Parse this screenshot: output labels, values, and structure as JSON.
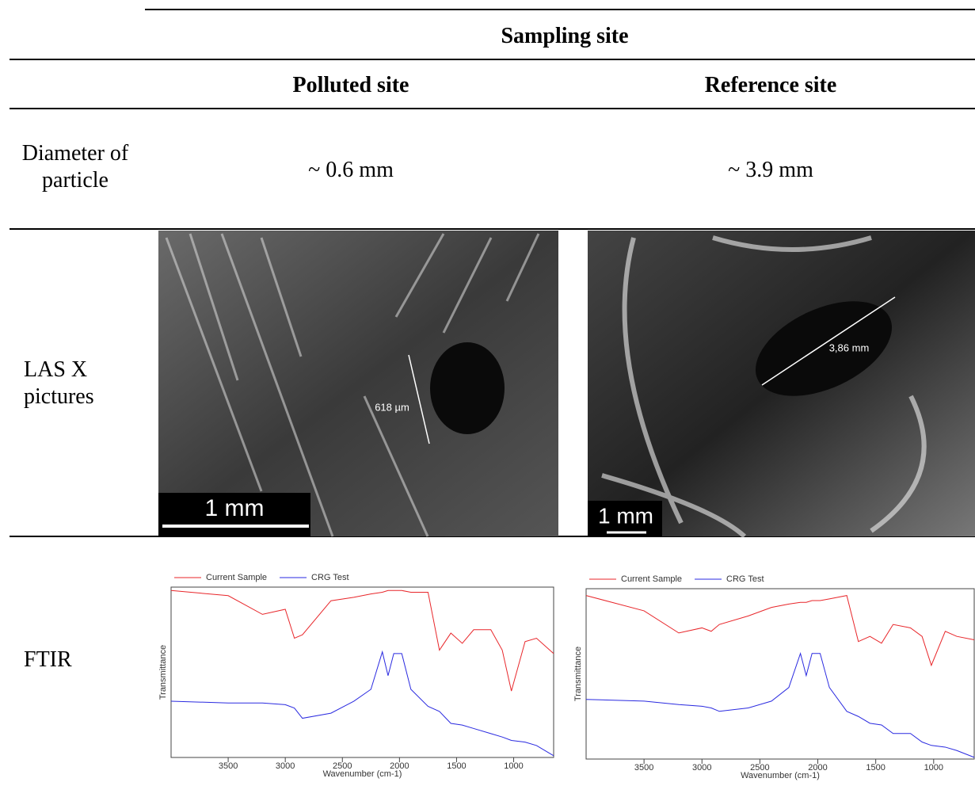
{
  "table": {
    "header": {
      "group": "Sampling site",
      "columns": [
        "Polluted site",
        "Reference site"
      ]
    },
    "rows": [
      {
        "label": "Diameter of particle",
        "cells": [
          "~ 0.6 mm",
          "~ 3.9 mm"
        ]
      },
      {
        "label": "LAS X pictures",
        "images": [
          {
            "measurement": "618 µm",
            "scale_bar": "1 mm"
          },
          {
            "measurement": "3,86 mm",
            "scale_bar": "1 mm"
          }
        ]
      },
      {
        "label": "FTIR"
      }
    ]
  },
  "chart_data": [
    {
      "type": "line",
      "x_label": "Wavenumber (cm-1)",
      "y_label": "Transmittance",
      "xlim": [
        4000,
        650
      ],
      "xticks": [
        3500,
        3000,
        2500,
        2000,
        1500,
        1000
      ],
      "ylim": [
        0,
        100
      ],
      "x": [
        4000,
        3500,
        3200,
        3000,
        2920,
        2850,
        2600,
        2400,
        2250,
        2150,
        2100,
        2050,
        1980,
        1900,
        1750,
        1650,
        1550,
        1450,
        1350,
        1200,
        1100,
        1020,
        900,
        800,
        650
      ],
      "series": [
        {
          "name": "Current Sample",
          "color": "#e8262a",
          "values": [
            98,
            95,
            84,
            87,
            70,
            72,
            92,
            94,
            96,
            97,
            98,
            98,
            98,
            97,
            97,
            63,
            73,
            67,
            75,
            75,
            63,
            39,
            68,
            70,
            61
          ]
        },
        {
          "name": "CRG Test",
          "color": "#2a2ae0",
          "values": [
            33,
            32,
            32,
            31,
            29,
            23,
            26,
            33,
            40,
            62,
            48,
            61,
            61,
            40,
            30,
            27,
            20,
            19,
            17,
            14,
            12,
            10,
            9,
            7,
            1
          ]
        }
      ]
    },
    {
      "type": "line",
      "x_label": "Wavenumber (cm-1)",
      "y_label": "Transmittance",
      "xlim": [
        4000,
        650
      ],
      "xticks": [
        3500,
        3000,
        2500,
        2000,
        1500,
        1000
      ],
      "ylim": [
        0,
        100
      ],
      "x": [
        4000,
        3500,
        3200,
        3000,
        2920,
        2850,
        2600,
        2400,
        2250,
        2150,
        2100,
        2050,
        1980,
        1900,
        1750,
        1650,
        1550,
        1450,
        1350,
        1200,
        1100,
        1020,
        900,
        800,
        650
      ],
      "series": [
        {
          "name": "Current Sample",
          "color": "#e8262a",
          "values": [
            96,
            87,
            74,
            77,
            75,
            79,
            84,
            89,
            91,
            92,
            92,
            93,
            93,
            94,
            96,
            69,
            72,
            68,
            79,
            77,
            72,
            55,
            75,
            72,
            70
          ]
        },
        {
          "name": "CRG Test",
          "color": "#2a2ae0",
          "values": [
            35,
            34,
            32,
            31,
            30,
            28,
            30,
            34,
            42,
            62,
            49,
            62,
            62,
            42,
            28,
            25,
            21,
            20,
            15,
            15,
            10,
            8,
            7,
            5,
            1
          ]
        }
      ]
    }
  ]
}
